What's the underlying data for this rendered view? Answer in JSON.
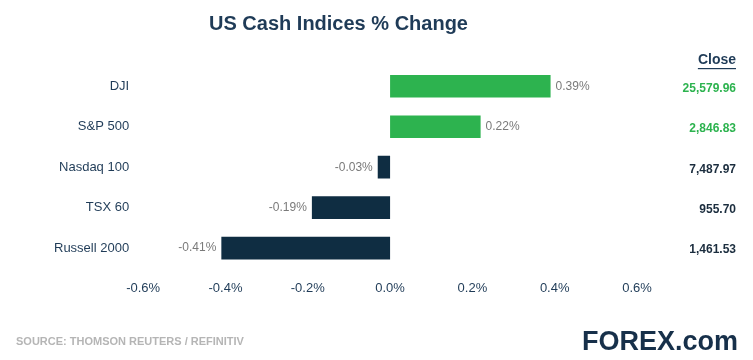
{
  "chart_data": {
    "type": "bar",
    "title": "US Cash Indices % Change",
    "orientation": "horizontal",
    "categories": [
      "DJI",
      "S&P 500",
      "Nasdaq 100",
      "TSX 60",
      "Russell 2000"
    ],
    "values": [
      0.39,
      0.22,
      -0.03,
      -0.19,
      -0.41
    ],
    "value_labels": [
      "0.39%",
      "0.22%",
      "-0.03%",
      "-0.19%",
      "-0.41%"
    ],
    "data_labels": true,
    "colors": [
      "#2db34f",
      "#2db34f",
      "#0f2d42",
      "#0f2d42",
      "#0f2d42"
    ],
    "xlim": [
      -0.6,
      0.6
    ],
    "xticks": [
      {
        "value": -0.6,
        "label": "-0.6%"
      },
      {
        "value": -0.4,
        "label": "-0.4%"
      },
      {
        "value": -0.2,
        "label": "-0.2%"
      },
      {
        "value": 0,
        "label": "0.0%"
      },
      {
        "value": 0.2,
        "label": "0.2%"
      },
      {
        "value": 0.4,
        "label": "0.4%"
      },
      {
        "value": 0.6,
        "label": "0.6%"
      }
    ],
    "grid": false,
    "close": {
      "title": "Close",
      "values": [
        25579.96,
        2846.83,
        7487.97,
        955.7,
        1461.53
      ],
      "value_labels": [
        "25,579.96",
        "2,846.83",
        "7,487.97",
        "955.70",
        "1,461.53"
      ],
      "colors": [
        "#2db34f",
        "#2db34f",
        "#1b2d3e",
        "#1b2d3e",
        "#1b2d3e"
      ]
    },
    "source": "SOURCE: THOMSON REUTERS / REFINITIV",
    "logo": "FOREX.com"
  }
}
